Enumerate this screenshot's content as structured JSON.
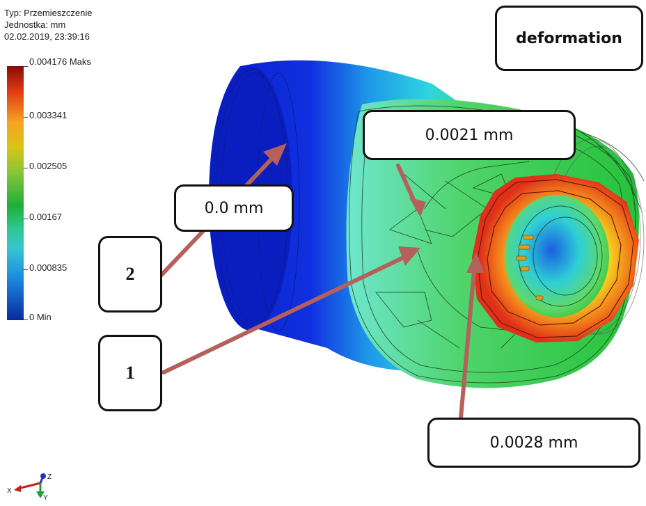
{
  "header": {
    "type": "Typ: Przemieszczenie",
    "unit": "Jednostka: mm",
    "datetime": "02.02.2019, 23:39:16"
  },
  "legend": {
    "labels": [
      "0.004176 Maks",
      "0.003341",
      "0.002505",
      "0.00167",
      "0.000835",
      "0 Min"
    ],
    "colors": [
      "#8a0a0a",
      "#e23b12",
      "#f5a323",
      "#d8c514",
      "#88c43a",
      "#1fae3a",
      "#2ec890",
      "#34c6d2",
      "#1a87df",
      "#0a2a9c"
    ]
  },
  "callouts": {
    "title": "deformation",
    "value_top": "0.0021 mm",
    "value_left": "0.0 mm",
    "value_bottom": "0.0028 mm",
    "marker_1": "1",
    "marker_2": "2"
  },
  "arrow_color": "#b5605a",
  "axes_triad": {
    "x": "X",
    "y": "Y",
    "z": "Z"
  }
}
